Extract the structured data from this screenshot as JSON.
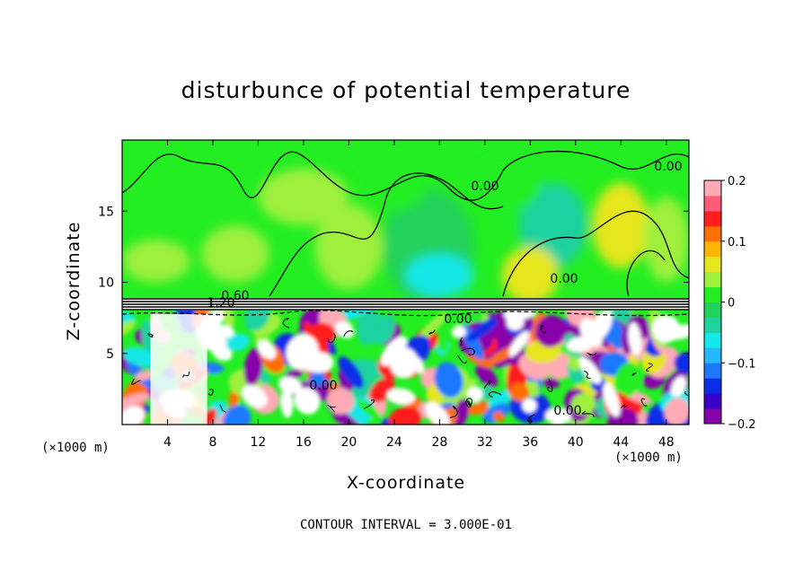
{
  "chart_data": {
    "type": "heatmap",
    "title": "disturbunce of potential temperature",
    "xlabel": "X-coordinate",
    "ylabel": "Z-coordinate",
    "x_unit": "(×1000 m)",
    "footnote": "CONTOUR INTERVAL = 3.000E-01",
    "xlim": [
      0,
      50
    ],
    "ylim": [
      0,
      20
    ],
    "x_ticks": [
      4,
      8,
      12,
      16,
      20,
      24,
      28,
      32,
      36,
      40,
      44,
      48
    ],
    "y_ticks": [
      5,
      10,
      15
    ],
    "colorbar": {
      "range": [
        -0.2,
        0.2
      ],
      "tick_values": [
        -0.2,
        -0.1,
        0,
        0.1,
        0.2
      ],
      "tick_labels": [
        "−0.2",
        "−0.1",
        "0",
        "0.1",
        "0.2"
      ],
      "colors": [
        "#8800aa",
        "#3a00c8",
        "#0a2ee8",
        "#1e78ff",
        "#26b8ff",
        "#14e8e8",
        "#1ed2a0",
        "#22d25a",
        "#22ee22",
        "#9ef03c",
        "#e6e61e",
        "#ffb400",
        "#ff6e00",
        "#ff1e1e",
        "#ff5a78",
        "#ffaab4"
      ]
    },
    "contour_labels": [
      "0.00",
      "1.20",
      "0.60"
    ]
  }
}
